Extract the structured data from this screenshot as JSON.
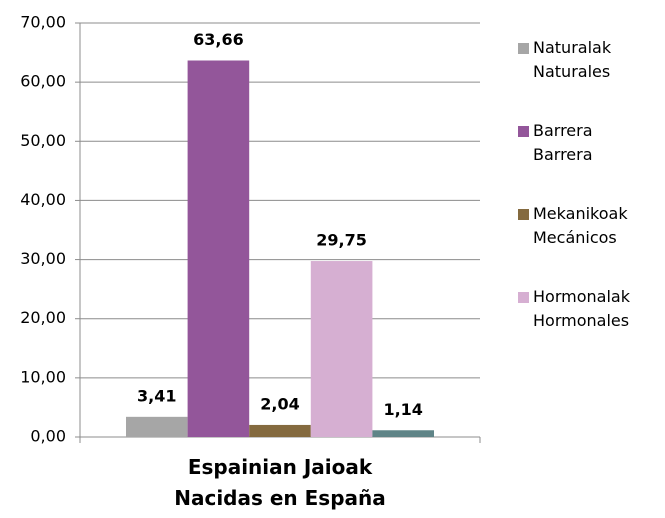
{
  "chart_data": {
    "type": "bar",
    "categories": [
      "Espainian Jaioak\nNacidas en España"
    ],
    "series": [
      {
        "name": "Naturalak\nNaturales",
        "color": "#a6a6a6",
        "values": [
          3.41
        ],
        "value_labels": [
          "3,41"
        ]
      },
      {
        "name": "Barrera\nBarrera",
        "color": "#93569a",
        "values": [
          63.66
        ],
        "value_labels": [
          "63,66"
        ]
      },
      {
        "name": "Mekanikoak\nMecánicos",
        "color": "#846a3f",
        "values": [
          2.04
        ],
        "value_labels": [
          "2,04"
        ]
      },
      {
        "name": "Hormonalak\nHormonales",
        "color": "#d6afd2",
        "values": [
          29.75
        ],
        "value_labels": [
          "29,75"
        ]
      },
      {
        "name": null,
        "color": "#5f8487",
        "values": [
          1.14
        ],
        "value_labels": [
          "1,14"
        ]
      }
    ],
    "ylim": [
      0,
      70
    ],
    "yticks": [
      {
        "value": 0,
        "label": "0,00"
      },
      {
        "value": 10,
        "label": "10,00"
      },
      {
        "value": 20,
        "label": "20,00"
      },
      {
        "value": 30,
        "label": "30,00"
      },
      {
        "value": 40,
        "label": "40,00"
      },
      {
        "value": 50,
        "label": "50,00"
      },
      {
        "value": 60,
        "label": "60,00"
      },
      {
        "value": 70,
        "label": "70,00"
      }
    ],
    "grid": true,
    "legend": "right"
  }
}
